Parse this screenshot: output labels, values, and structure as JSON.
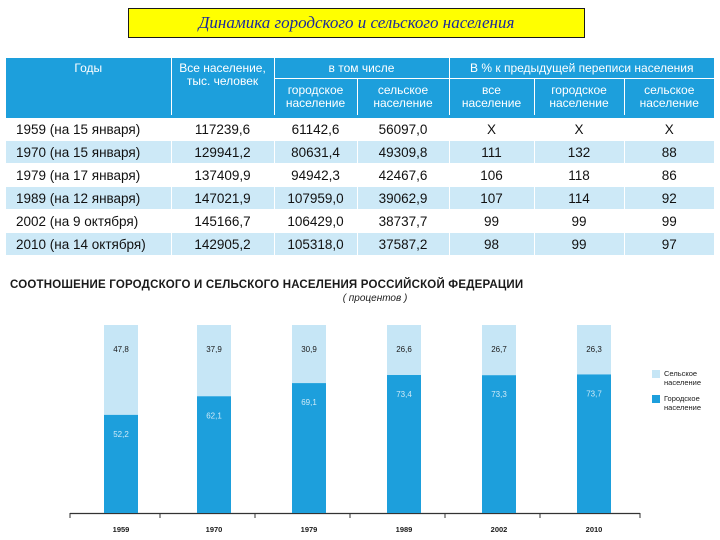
{
  "title": "Динамика городского и сельского населения",
  "table": {
    "header": {
      "years": "Годы",
      "all_population": "Все население, тыс. человек",
      "incl_group": "в том числе",
      "pct_group": "В % к предыдущей переписи населения",
      "urban": "городское население",
      "rural": "сельское население",
      "all_short": "все население"
    },
    "rows": [
      {
        "year": "1959 (на 15 января)",
        "total": "117239,6",
        "urban": "61142,6",
        "rural": "56097,0",
        "pct_total": "X",
        "pct_urban": "X",
        "pct_rural": "X"
      },
      {
        "year": "1970 (на 15 января)",
        "total": "129941,2",
        "urban": "80631,4",
        "rural": "49309,8",
        "pct_total": "111",
        "pct_urban": "132",
        "pct_rural": "88"
      },
      {
        "year": "1979 (на 17 января)",
        "total": "137409,9",
        "urban": "94942,3",
        "rural": "42467,6",
        "pct_total": "106",
        "pct_urban": "118",
        "pct_rural": "86"
      },
      {
        "year": "1989 (на 12 января)",
        "total": "147021,9",
        "urban": "107959,0",
        "rural": "39062,9",
        "pct_total": "107",
        "pct_urban": "114",
        "pct_rural": "92"
      },
      {
        "year": "2002 (на 9 октября)",
        "total": "145166,7",
        "urban": "106429,0",
        "rural": "38737,7",
        "pct_total": "99",
        "pct_urban": "99",
        "pct_rural": "99"
      },
      {
        "year": "2010 (на 14 октября)",
        "total": "142905,2",
        "urban": "105318,0",
        "rural": "37587,2",
        "pct_total": "98",
        "pct_urban": "99",
        "pct_rural": "97"
      }
    ]
  },
  "chart_data": {
    "type": "bar",
    "stacked": true,
    "title": "СООТНОШЕНИЕ ГОРОДСКОГО И СЕЛЬСКОГО НАСЕЛЕНИЯ РОССИЙСКОЙ ФЕДЕРАЦИИ",
    "subtitle": "( процентов )",
    "categories": [
      "1959",
      "1970",
      "1979",
      "1989",
      "2002",
      "2010"
    ],
    "category_labels": [
      "1959",
      "1970",
      "1979",
      "1989",
      "2002",
      "2010"
    ],
    "series": [
      {
        "name": "Городское население",
        "values": [
          52.2,
          62.1,
          69.1,
          73.4,
          73.3,
          73.7
        ],
        "labels": [
          "52,2",
          "62,1",
          "69,1",
          "73,4",
          "73,3",
          "73,7"
        ],
        "color": "#1d9fdc",
        "label_color": "#cfeaf7"
      },
      {
        "name": "Сельское население",
        "values": [
          47.8,
          37.9,
          30.9,
          26.6,
          26.7,
          26.3
        ],
        "labels": [
          "47,8",
          "37,9",
          "30,9",
          "26,6",
          "26,7",
          "26,3"
        ],
        "color": "#c6e6f6",
        "label_color": "#1a1a1a"
      }
    ],
    "ylim": [
      0,
      100
    ],
    "legend": [
      {
        "label": "Сельское население",
        "color": "#c6e6f6"
      },
      {
        "label": "Городское население",
        "color": "#1d9fdc"
      }
    ],
    "legend_position": "right"
  }
}
